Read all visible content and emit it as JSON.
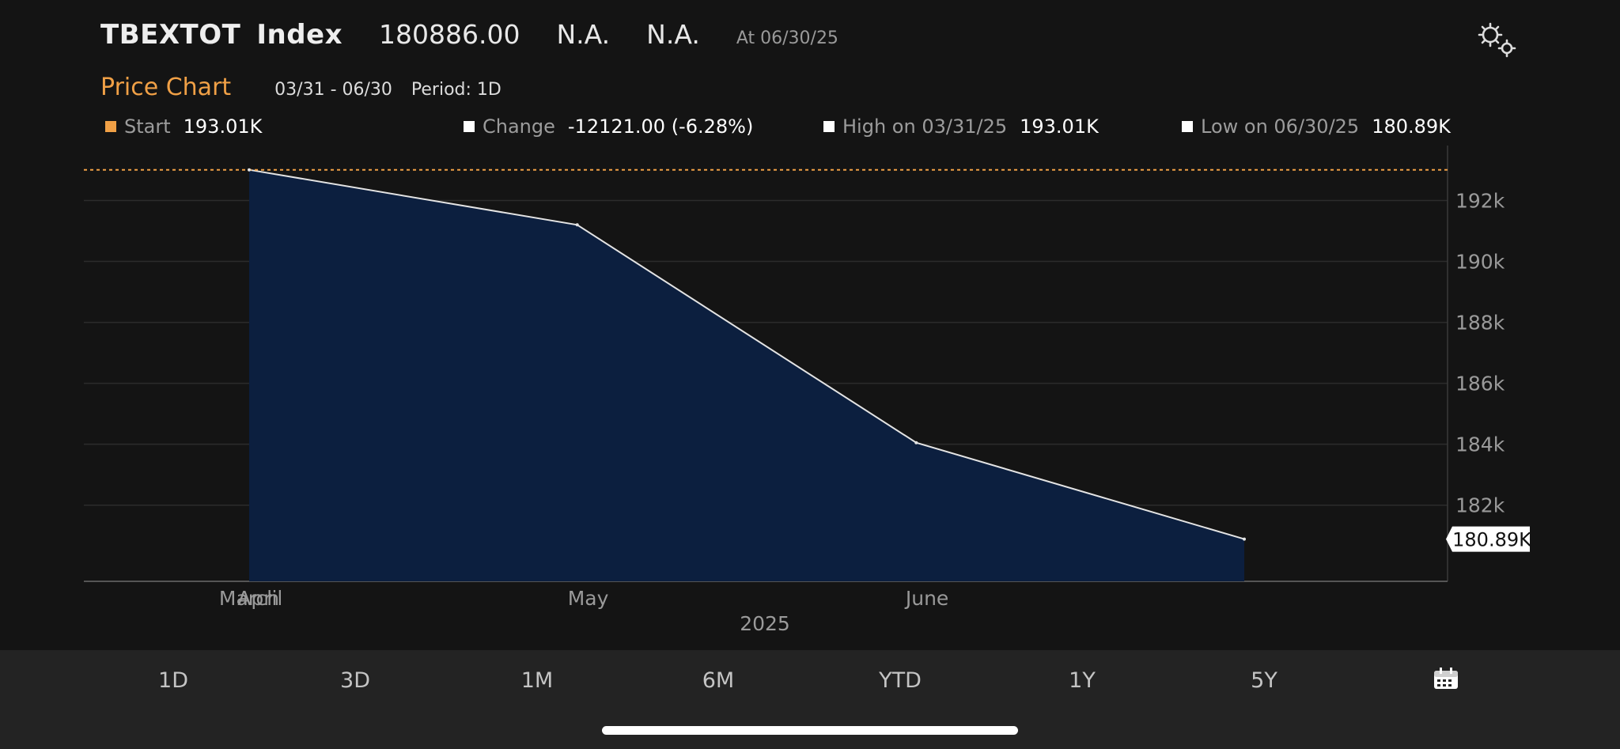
{
  "header": {
    "ticker": "TBEXTOT",
    "type": "Index",
    "last_price": "180886.00",
    "field2": "N.A.",
    "field3": "N.A.",
    "as_of": "At 06/30/25"
  },
  "subheader": {
    "title": "Price Chart",
    "range": "03/31 - 06/30",
    "period": "Period: 1D"
  },
  "stats": {
    "start_label": "Start",
    "start_value": "193.01K",
    "change_label": "Change",
    "change_value": "-12121.00 (-6.28%)",
    "high_label": "High on 03/31/25",
    "high_value": "193.01K",
    "low_label": "Low on 06/30/25",
    "low_value": "180.89K"
  },
  "chart_data": {
    "type": "area",
    "x": [
      "2025-03-31",
      "2025-04-30",
      "2025-05-31",
      "2025-06-30"
    ],
    "values": [
      193007,
      191200,
      184050,
      180886
    ],
    "ylim": [
      179500,
      193700
    ],
    "y_ticks": [
      182000,
      184000,
      186000,
      188000,
      190000,
      192000
    ],
    "y_tick_labels": [
      "182k",
      "184k",
      "186k",
      "188k",
      "190k",
      "192k"
    ],
    "x_tick_labels": [
      "March",
      "April",
      "May",
      "June"
    ],
    "year_label": "2025",
    "start_reference_value": 193007,
    "last_value_label": "180.89K",
    "grid": true,
    "colors": {
      "fill": "#0c1f3f",
      "line": "#e4e4e4",
      "reference_line": "#f0a046",
      "grid": "#2c2c2c"
    }
  },
  "tabs": [
    "1D",
    "3D",
    "1M",
    "6M",
    "YTD",
    "1Y",
    "5Y"
  ],
  "icons": {
    "settings": "gears-icon",
    "calendar": "calendar-icon"
  },
  "colors": {
    "accent": "#f0a046",
    "background": "#141414",
    "bottom_bar": "#232323"
  }
}
